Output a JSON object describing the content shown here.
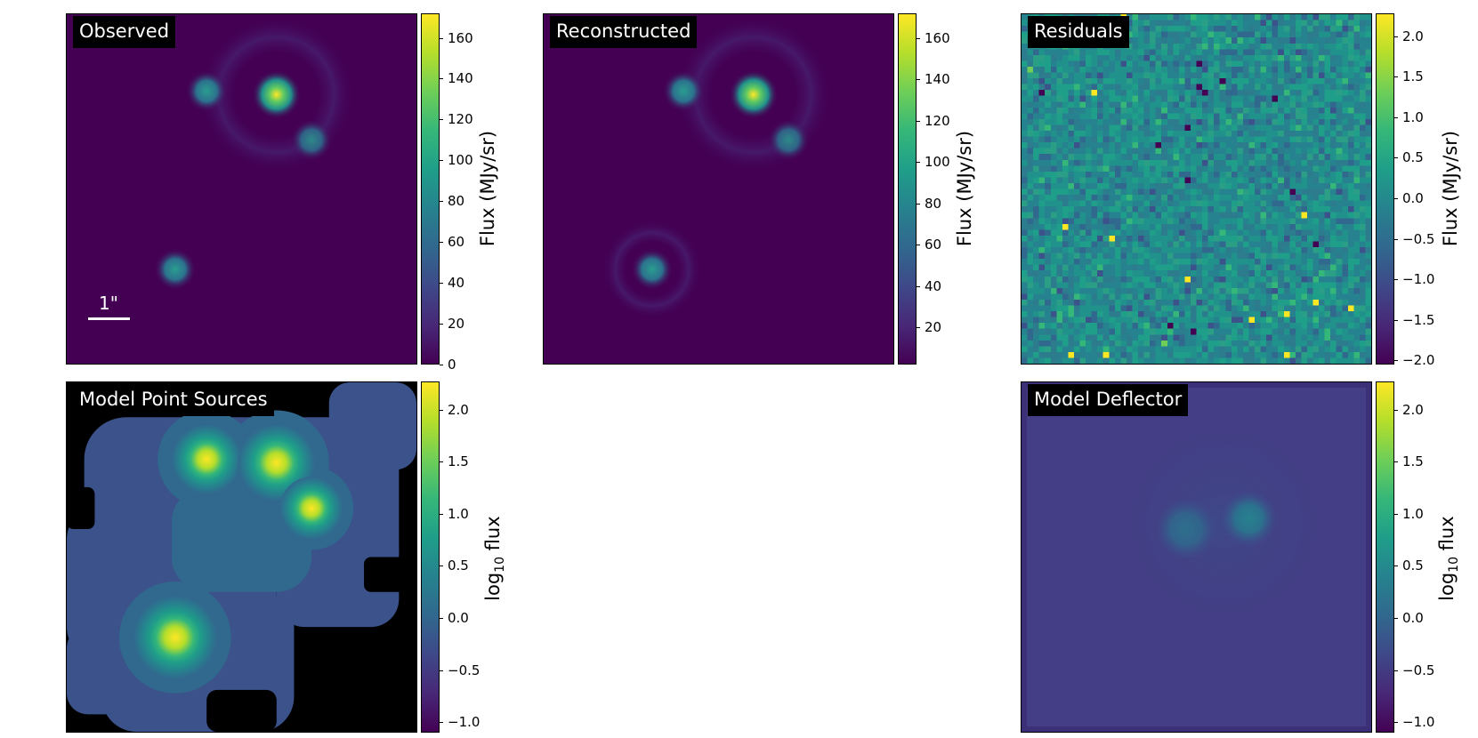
{
  "chart_data": [
    {
      "type": "heatmap",
      "title": "Observed",
      "scalebar_label": "1\"",
      "colorbar": {
        "label": "Flux (MJy/sr)",
        "range": [
          0,
          172
        ],
        "ticks": [
          0,
          20,
          40,
          60,
          80,
          100,
          120,
          140,
          160
        ]
      },
      "colormap": "viridis"
    },
    {
      "type": "heatmap",
      "title": "Reconstructed",
      "colorbar": {
        "label": "Flux (MJy/sr)",
        "range": [
          2,
          172
        ],
        "ticks": [
          20,
          40,
          60,
          80,
          100,
          120,
          140,
          160
        ]
      },
      "colormap": "viridis"
    },
    {
      "type": "heatmap",
      "title": "Residuals",
      "colorbar": {
        "label": "Flux (MJy/sr)",
        "range": [
          -2.05,
          2.28
        ],
        "ticks": [
          -2.0,
          -1.5,
          -1.0,
          -0.5,
          0.0,
          0.5,
          1.0,
          1.5,
          2.0
        ]
      },
      "colormap": "viridis"
    },
    {
      "type": "heatmap",
      "title": "Model Point Sources",
      "colorbar": {
        "label": "log10 flux",
        "range": [
          -1.1,
          2.27
        ],
        "ticks": [
          -1.0,
          -0.5,
          0.0,
          0.5,
          1.0,
          1.5,
          2.0
        ]
      },
      "colormap": "viridis"
    },
    {
      "type": "heatmap",
      "title": "Model Deflector",
      "colorbar": {
        "label": "log10 flux",
        "range": [
          -1.1,
          2.27
        ],
        "ticks": [
          -1.0,
          -0.5,
          0.0,
          0.5,
          1.0,
          1.5,
          2.0
        ]
      },
      "colormap": "viridis"
    }
  ],
  "colors": {
    "viridis_low": "#440154",
    "viridis_mid": "#21918c",
    "viridis_high": "#fde725"
  }
}
